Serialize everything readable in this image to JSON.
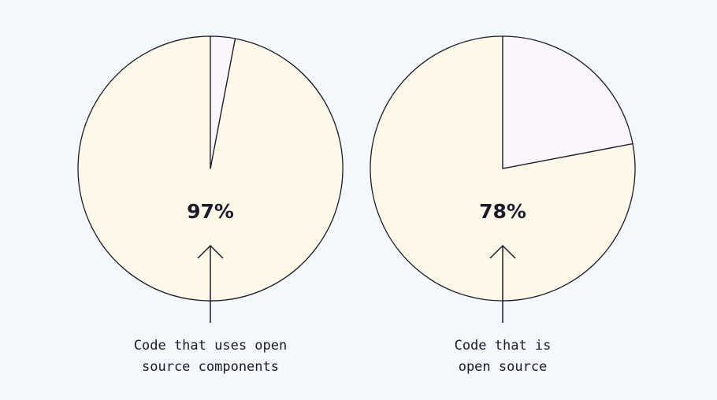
{
  "colors": {
    "background": "#f2f8fc",
    "majority_fill": "#fdf8e7",
    "minority_fill": "#fbf5fd",
    "stroke": "#1b1b2b",
    "text": "#1b1b2b"
  },
  "chart_data": [
    {
      "type": "pie",
      "slices": [
        {
          "value": 97,
          "color": "#fdf8e7"
        },
        {
          "value": 3,
          "color": "#fbf5fd"
        }
      ],
      "center_label": "97%",
      "caption_lines": [
        "Code that uses open",
        "source components"
      ]
    },
    {
      "type": "pie",
      "slices": [
        {
          "value": 78,
          "color": "#fdf8e7"
        },
        {
          "value": 22,
          "color": "#fbf5fd"
        }
      ],
      "center_label": "78%",
      "caption_lines": [
        "Code that is",
        "open source"
      ]
    }
  ]
}
